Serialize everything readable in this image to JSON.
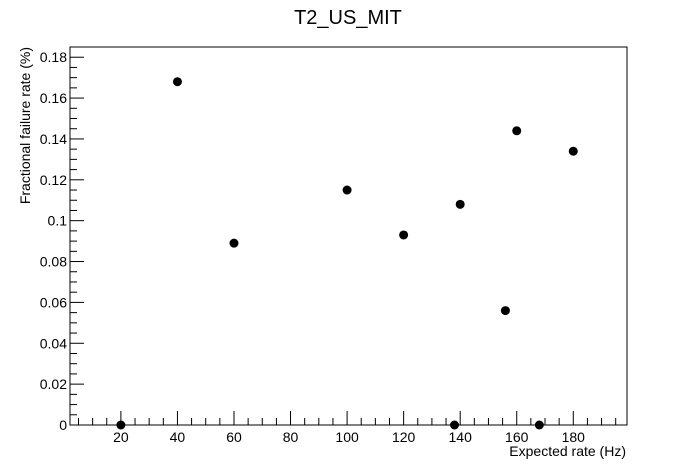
{
  "chart_data": {
    "type": "scatter",
    "title": "T2_US_MIT",
    "xlabel": "Expected rate (Hz)",
    "ylabel": "Fractional failure rate (%)",
    "xlim": [
      2,
      199
    ],
    "ylim": [
      0,
      0.185
    ],
    "x_ticks": [
      20,
      40,
      60,
      80,
      100,
      120,
      140,
      160,
      180
    ],
    "x_tick_labels": [
      "20",
      "40",
      "60",
      "80",
      "100",
      "120",
      "140",
      "160",
      "180"
    ],
    "y_ticks": [
      0,
      0.02,
      0.04,
      0.06,
      0.08,
      0.1,
      0.12,
      0.14,
      0.16,
      0.18
    ],
    "y_tick_labels": [
      "0",
      "0.02",
      "0.04",
      "0.06",
      "0.08",
      "0.1",
      "0.12",
      "0.14",
      "0.16",
      "0.18"
    ],
    "grid": false,
    "legend": "none",
    "marker_color": "#000000",
    "points": [
      {
        "x": 20,
        "y": 0
      },
      {
        "x": 40,
        "y": 0.168
      },
      {
        "x": 60,
        "y": 0.089
      },
      {
        "x": 100,
        "y": 0.115
      },
      {
        "x": 120,
        "y": 0.093
      },
      {
        "x": 138,
        "y": 0
      },
      {
        "x": 140,
        "y": 0.108
      },
      {
        "x": 156,
        "y": 0.056
      },
      {
        "x": 160,
        "y": 0.144
      },
      {
        "x": 168,
        "y": 0
      },
      {
        "x": 180,
        "y": 0.134
      }
    ]
  }
}
